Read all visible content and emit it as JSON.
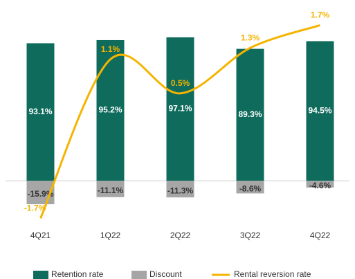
{
  "chart_data": {
    "type": "bar-line",
    "categories": [
      "4Q21",
      "1Q22",
      "2Q22",
      "3Q22",
      "4Q22"
    ],
    "series": [
      {
        "name": "Retention rate",
        "type": "bar",
        "color": "#0f6b5c",
        "values": [
          93.1,
          95.2,
          97.1,
          89.3,
          94.5
        ],
        "value_labels": [
          "93.1%",
          "95.2%",
          "97.1%",
          "89.3%",
          "94.5%"
        ]
      },
      {
        "name": "Discount",
        "type": "bar",
        "color": "#a6a6a6",
        "values": [
          -15.9,
          -11.1,
          -11.3,
          -8.6,
          -4.6
        ],
        "value_labels": [
          "-15.9%",
          "-11.1%",
          "-11.3%",
          "-8.6%",
          "-4.6%"
        ]
      },
      {
        "name": "Rental reversion rate",
        "type": "line",
        "axis": "y2",
        "color": "#f5b400",
        "values": [
          -1.7,
          1.1,
          0.5,
          1.3,
          1.7
        ],
        "value_labels": [
          "-1.7%",
          "1.1%",
          "0.5%",
          "1.3%",
          "1.7%"
        ]
      }
    ],
    "ylim": [
      -37,
      113
    ],
    "y2lim": [
      -2,
      1.9
    ],
    "legend": "bottom"
  }
}
